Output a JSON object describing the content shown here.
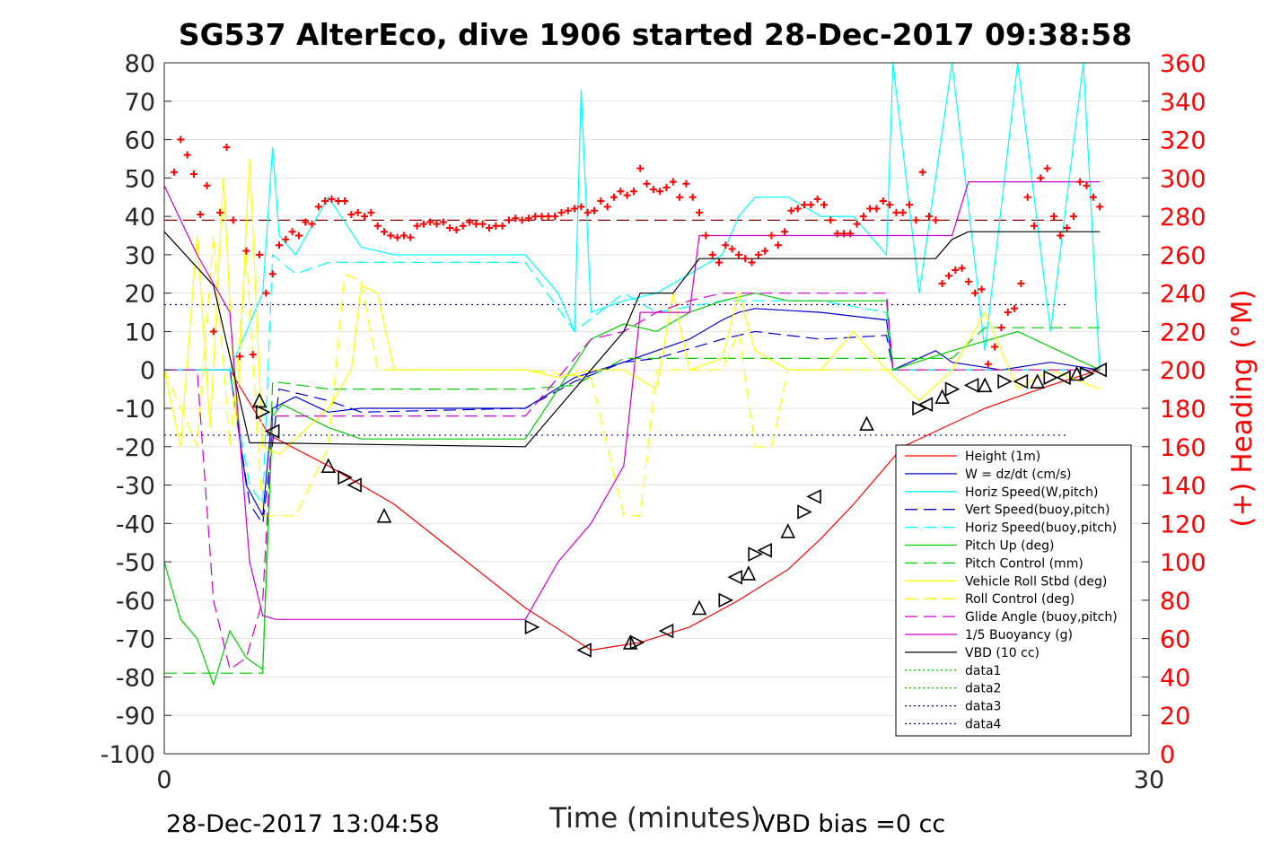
{
  "chart_data": {
    "type": "line",
    "title": "SG537 AlterEco, dive 1906 started 28-Dec-2017 09:38:58",
    "xlabel": "Time (minutes)",
    "ylabel_right": "(+) Heading (°M)",
    "xlim": [
      0,
      30
    ],
    "ylim": [
      -100,
      80
    ],
    "ylim_right": [
      0,
      360
    ],
    "x_ticks": [
      0,
      30
    ],
    "y_ticks": [
      -100,
      -90,
      -80,
      -70,
      -60,
      -50,
      -40,
      -30,
      -20,
      -10,
      0,
      10,
      20,
      30,
      40,
      50,
      60,
      70,
      80
    ],
    "y_ticks_right": [
      0,
      20,
      40,
      60,
      80,
      100,
      120,
      140,
      160,
      180,
      200,
      220,
      240,
      260,
      280,
      300,
      320,
      340,
      360
    ],
    "grid": "horizontal",
    "legend_position": "bottom-right",
    "footer_left": "28-Dec-2017 13:04:58",
    "footer_right": "VBD bias =0 cc",
    "series": [
      {
        "name": "Height (1m)",
        "color": "#ff0000",
        "style": "solid",
        "x": [
          0,
          2,
          2.7,
          3.2,
          5,
          7,
          11,
          13,
          14.5,
          16,
          17.5,
          19,
          20,
          21,
          22.5,
          25,
          27,
          28.5
        ],
        "y": [
          0,
          0,
          -10,
          -17,
          -25,
          -35,
          -62,
          -73,
          -71,
          -67,
          -60,
          -52,
          -44,
          -35,
          -20,
          -10,
          -4,
          0
        ]
      },
      {
        "name": "W = dz/dt (cm/s)",
        "color": "#0000cc",
        "style": "solid",
        "x": [
          0,
          2,
          2.5,
          3,
          3.3,
          4,
          5,
          6,
          11,
          12.5,
          14,
          15,
          16,
          17,
          17.5,
          18,
          20,
          22,
          22.2,
          23.5,
          24,
          25.5,
          27,
          28.5
        ],
        "y": [
          0,
          0,
          -30,
          -38,
          -10,
          -7,
          -11,
          -10,
          -10,
          -2,
          2,
          5,
          8,
          13,
          15,
          16,
          15,
          13,
          0,
          5,
          2,
          0,
          2,
          0
        ]
      },
      {
        "name": "Horiz Speed(W,pitch)",
        "color": "#00ffff",
        "style": "solid",
        "x": [
          0,
          2,
          3,
          3.3,
          3.5,
          4,
          5,
          6,
          7,
          11,
          12,
          12.5,
          12.7,
          13,
          14,
          15,
          16,
          17,
          17.5,
          18,
          19,
          20,
          21,
          22,
          22.2,
          23,
          24,
          25,
          26,
          27,
          28,
          28.5
        ],
        "y": [
          0,
          0,
          20,
          58,
          35,
          30,
          45,
          32,
          30,
          30,
          20,
          10,
          73,
          15,
          18,
          20,
          25,
          30,
          40,
          45,
          45,
          40,
          40,
          30,
          80,
          20,
          80,
          5,
          80,
          10,
          80,
          0
        ]
      },
      {
        "name": "Vert Speed(buoy,pitch)",
        "color": "#0000cc",
        "style": "dashed",
        "x": [
          0,
          2,
          2.6,
          3,
          3.5,
          5,
          6,
          11,
          12.5,
          14,
          15,
          17,
          18,
          20,
          22,
          22.2,
          28.5
        ],
        "y": [
          0,
          0,
          -35,
          -40,
          -5,
          -8,
          -11,
          -10,
          -3,
          2,
          3,
          8,
          10,
          8,
          9,
          0,
          0
        ]
      },
      {
        "name": "Horiz Speed(buoy,pitch)",
        "color": "#00ffff",
        "style": "dashed",
        "x": [
          0,
          2,
          2.6,
          3,
          3.3,
          4,
          5,
          11,
          12.5,
          14,
          15,
          17,
          18,
          20,
          22,
          22.2,
          28.5
        ],
        "y": [
          0,
          0,
          -30,
          -35,
          30,
          25,
          28,
          28,
          10,
          20,
          15,
          18,
          18,
          18,
          15,
          0,
          0
        ]
      },
      {
        "name": "Pitch Up (deg)",
        "color": "#00cc00",
        "style": "solid",
        "x": [
          0,
          0.5,
          1,
          1.5,
          2,
          2.5,
          3,
          3.3,
          3.6,
          5,
          6,
          11,
          12,
          13,
          14,
          15,
          16,
          17,
          18,
          19,
          20,
          22,
          22.2,
          24,
          26,
          28.5
        ],
        "y": [
          -50,
          -65,
          -70,
          -82,
          -68,
          -75,
          -78,
          -12,
          -9,
          -15,
          -18,
          -18,
          -5,
          8,
          12,
          10,
          15,
          18,
          20,
          18,
          18,
          18,
          0,
          5,
          10,
          0
        ]
      },
      {
        "name": "Pitch Control (mm)",
        "color": "#00cc00",
        "style": "dashed",
        "x": [
          0,
          1.5,
          2,
          2.6,
          3,
          3.3,
          5,
          11,
          12.5,
          14,
          15,
          16,
          17,
          22,
          22.2,
          24,
          25,
          28.5
        ],
        "y": [
          -79,
          -79,
          -79,
          -79,
          -79,
          -3,
          -5,
          -5,
          -4,
          3,
          3,
          3,
          3,
          3,
          3,
          3,
          11,
          11
        ]
      },
      {
        "name": "Vehicle Roll Stbd (deg)",
        "color": "#ffff00",
        "style": "solid",
        "x": [
          0,
          0.5,
          1,
          1.4,
          1.8,
          2.2,
          2.6,
          3,
          3.5,
          5,
          5.7,
          6,
          6.5,
          7,
          11,
          12,
          13,
          14,
          15,
          15.5,
          16,
          17,
          17.5,
          18,
          19,
          20,
          21,
          22,
          23,
          24,
          25,
          26,
          27,
          28.5
        ],
        "y": [
          0,
          -20,
          35,
          -15,
          50,
          -15,
          55,
          -20,
          -22,
          -10,
          0,
          22,
          20,
          0,
          0,
          -2,
          0,
          0,
          -5,
          20,
          0,
          3,
          20,
          5,
          0,
          0,
          10,
          0,
          -8,
          0,
          15,
          -5,
          0,
          -5
        ]
      },
      {
        "name": "Roll Control (deg)",
        "color": "#ffff00",
        "style": "dashed",
        "x": [
          0,
          1,
          1.5,
          2,
          2.5,
          3,
          3.3,
          4,
          5,
          5.5,
          6,
          6.5,
          7,
          11,
          13,
          14,
          14.5,
          15,
          16,
          17,
          17.5,
          18,
          18.5,
          19,
          20,
          22,
          24,
          26,
          28.5
        ],
        "y": [
          0,
          -20,
          35,
          -20,
          30,
          -38,
          -38,
          -38,
          -20,
          25,
          23,
          0,
          0,
          0,
          -2,
          -38,
          -38,
          0,
          0,
          0,
          10,
          -20,
          -20,
          0,
          0,
          0,
          0,
          0,
          0
        ]
      },
      {
        "name": "Glide Angle (buoy,pitch)",
        "color": "#cc00cc",
        "style": "dashed",
        "x": [
          0,
          1,
          1.5,
          2,
          2.5,
          3,
          3.3,
          5,
          11,
          12,
          13,
          14,
          15,
          16,
          17,
          18,
          20,
          22,
          22.2,
          28.5
        ],
        "y": [
          0,
          0,
          -60,
          -78,
          -75,
          -60,
          -12,
          -12,
          -12,
          -2,
          8,
          10,
          15,
          18,
          20,
          20,
          20,
          20,
          0,
          0
        ]
      },
      {
        "name": "1/5 Buoyancy (g)",
        "color": "#cc00cc",
        "style": "solid",
        "x": [
          0,
          1,
          2,
          2.6,
          3,
          3.4,
          4,
          11,
          12,
          13,
          14,
          14.5,
          16,
          16.3,
          22,
          22.1,
          24,
          24.5,
          28.5
        ],
        "y": [
          48,
          30,
          15,
          -50,
          -64,
          -65,
          -65,
          -65,
          -50,
          -40,
          -25,
          15,
          15,
          35,
          35,
          35,
          35,
          49,
          49
        ]
      },
      {
        "name": "VBD (10 cc)",
        "color": "#000000",
        "style": "solid",
        "x": [
          0,
          1.5,
          2.6,
          2.7,
          3,
          11,
          12,
          13,
          14,
          14.5,
          15,
          15.5,
          16.3,
          22,
          23.5,
          24,
          24.5,
          28.5
        ],
        "y": [
          36,
          22,
          -19,
          -19,
          -19,
          -20,
          -10,
          0,
          10,
          20,
          20,
          20,
          29,
          29,
          29,
          34,
          36,
          36
        ]
      },
      {
        "name": "data1",
        "color": "#00cc00",
        "style": "dotted",
        "x": [],
        "y": []
      },
      {
        "name": "data2",
        "color": "#00cc00",
        "style": "dotted",
        "x": [],
        "y": []
      },
      {
        "name": "data3",
        "color": "#000080",
        "style": "dotted",
        "x": [],
        "y": []
      },
      {
        "name": "data4",
        "color": "#000080",
        "style": "dotted",
        "x": [],
        "y": []
      }
    ],
    "reference_lines": [
      {
        "axis": "y",
        "value": 17,
        "color": "#000080",
        "style": "dotted"
      },
      {
        "axis": "y",
        "value": -17,
        "color": "#000080",
        "style": "dotted"
      },
      {
        "axis": "y_right",
        "value": 278,
        "color": "#8b0000",
        "style": "dashed"
      }
    ],
    "heading_points": {
      "axis": "right",
      "marker": "+",
      "color": "#ff0000",
      "x": [
        0.3,
        0.5,
        0.7,
        0.9,
        1.1,
        1.3,
        1.5,
        1.7,
        1.9,
        2.1,
        2.3,
        2.5,
        2.7,
        2.9,
        3.1,
        3.3,
        3.5,
        3.7,
        3.9,
        4.1,
        4.3,
        4.5,
        4.7,
        4.9,
        5.1,
        5.3,
        5.5,
        5.7,
        5.9,
        6.1,
        6.3,
        6.5,
        6.7,
        6.9,
        7.1,
        7.3,
        7.5,
        7.7,
        7.9,
        8.1,
        8.3,
        8.5,
        8.7,
        8.9,
        9.1,
        9.3,
        9.5,
        9.7,
        9.9,
        10.1,
        10.3,
        10.5,
        10.7,
        10.9,
        11.1,
        11.3,
        11.5,
        11.7,
        11.9,
        12.1,
        12.3,
        12.5,
        12.7,
        12.9,
        13.1,
        13.3,
        13.5,
        13.7,
        13.9,
        14.1,
        14.3,
        14.5,
        14.7,
        14.9,
        15.1,
        15.3,
        15.5,
        15.7,
        15.9,
        16.1,
        16.3,
        16.5,
        16.7,
        16.9,
        17.1,
        17.3,
        17.5,
        17.7,
        17.9,
        18.1,
        18.3,
        18.5,
        18.7,
        18.9,
        19.1,
        19.3,
        19.5,
        19.7,
        19.9,
        20.1,
        20.3,
        20.5,
        20.7,
        20.9,
        21.1,
        21.3,
        21.5,
        21.7,
        21.9,
        22.1,
        22.3,
        22.5,
        22.7,
        22.9,
        23.1,
        23.3,
        23.5,
        23.7,
        23.9,
        24.1,
        24.3,
        24.5,
        24.7,
        24.9,
        25.1,
        25.3,
        25.5,
        25.7,
        25.9,
        26.1,
        26.3,
        26.5,
        26.7,
        26.9,
        27.1,
        27.3,
        27.5,
        27.7,
        27.9,
        28.1,
        28.3,
        28.5
      ],
      "y": [
        303,
        320,
        312,
        302,
        281,
        296,
        220,
        282,
        316,
        278,
        207,
        262,
        208,
        260,
        240,
        250,
        265,
        268,
        272,
        270,
        277,
        276,
        285,
        288,
        289,
        288,
        288,
        281,
        282,
        280,
        282,
        275,
        272,
        270,
        269,
        270,
        269,
        275,
        276,
        277,
        276,
        277,
        274,
        273,
        275,
        277,
        276,
        276,
        274,
        275,
        275,
        278,
        279,
        278,
        279,
        280,
        280,
        280,
        280,
        282,
        283,
        284,
        285,
        282,
        283,
        288,
        285,
        290,
        293,
        291,
        293,
        305,
        297,
        294,
        293,
        295,
        298,
        290,
        297,
        290,
        282,
        270,
        260,
        256,
        265,
        263,
        260,
        258,
        256,
        260,
        262,
        270,
        265,
        272,
        283,
        284,
        286,
        286,
        289,
        286,
        278,
        271,
        271,
        271,
        276,
        280,
        284,
        284,
        288,
        286,
        282,
        282,
        286,
        278,
        303,
        280,
        278,
        245,
        249,
        252,
        253,
        246,
        240,
        242,
        203,
        212,
        222,
        230,
        232,
        245,
        290,
        275,
        300,
        305,
        280,
        270,
        274,
        280,
        298,
        296,
        290,
        285
      ]
    },
    "dive_markers": {
      "marker": "triangle",
      "color": "#000000",
      "x": [
        2.9,
        3.0,
        3.3,
        5.0,
        5.5,
        5.8,
        6.7,
        11.2,
        12.8,
        14.2,
        14.4,
        15.3,
        16.3,
        17.1,
        17.4,
        17.8,
        18.0,
        18.3,
        19.0,
        19.5,
        19.8,
        21.4,
        23.0,
        23.2,
        23.7,
        24.0,
        24.6,
        25.0,
        25.6,
        26.1,
        26.6,
        27.0,
        27.4,
        27.8,
        28.1,
        28.5
      ],
      "y": [
        -8,
        -11,
        -16,
        -25,
        -28,
        -30,
        -38,
        -67,
        -73,
        -71,
        -71,
        -68,
        -62,
        -60,
        -54,
        -53,
        -48,
        -47,
        -42,
        -37,
        -33,
        -14,
        -10,
        -9,
        -7,
        -5,
        -4,
        -4,
        -3,
        -3,
        -3,
        -2,
        -2,
        -1,
        -1,
        0
      ]
    }
  }
}
